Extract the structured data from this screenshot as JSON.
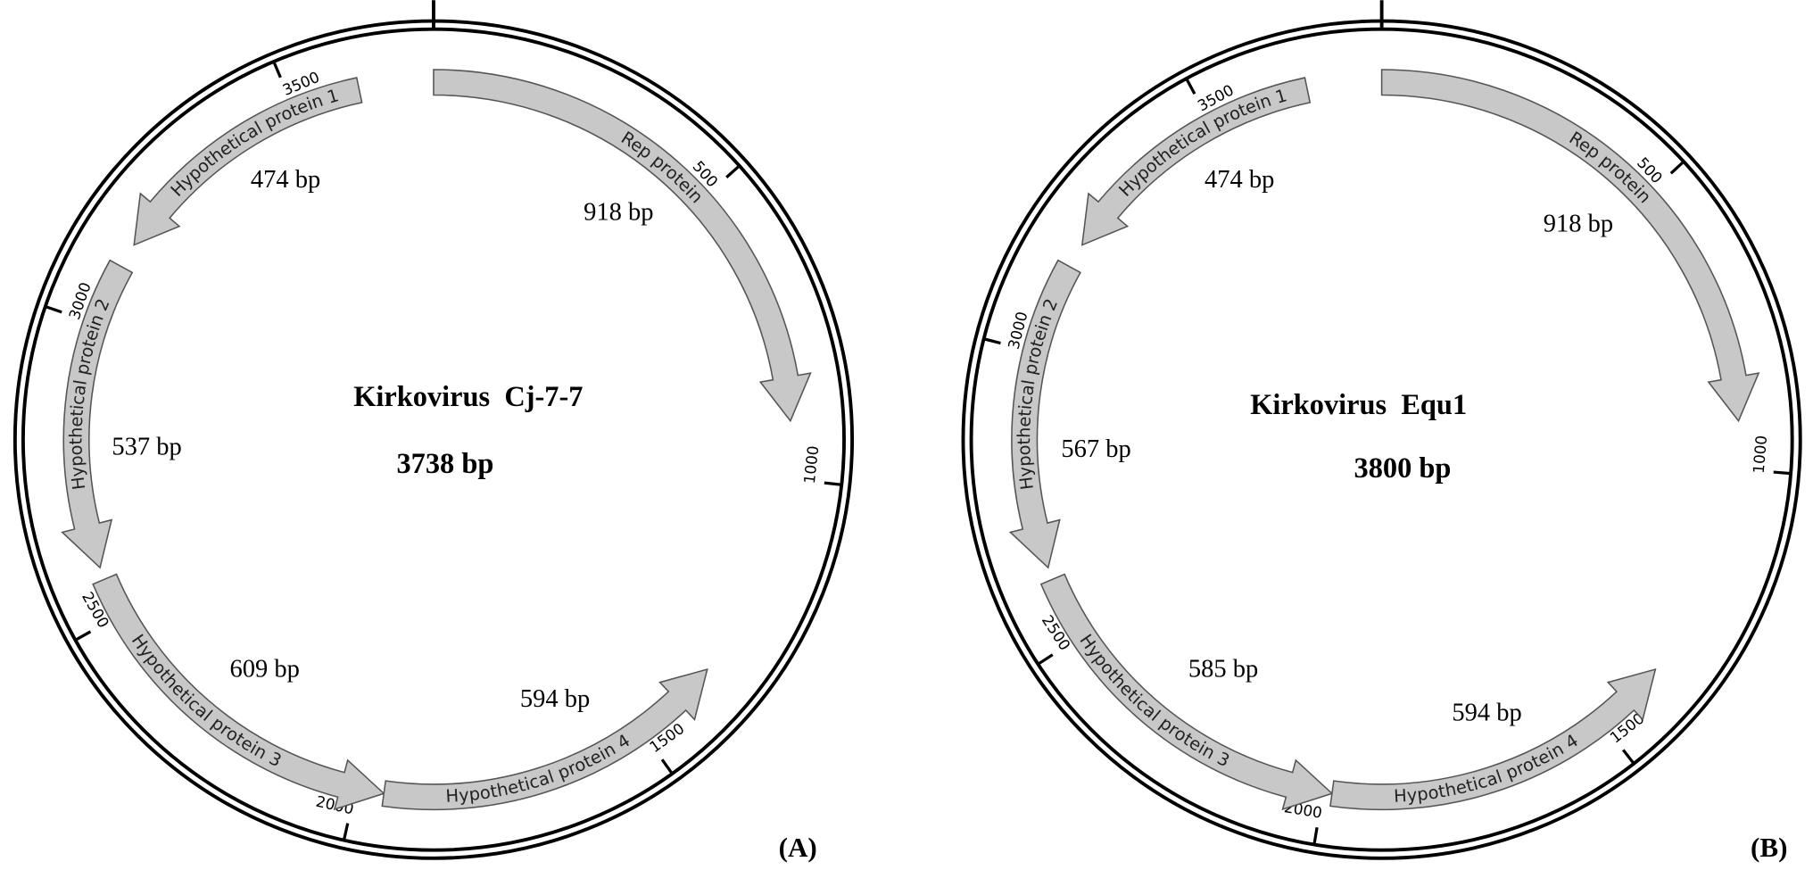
{
  "maps": [
    {
      "name": "Kirkovirus  Cj-7-7",
      "size": "3738 bp",
      "panel": "(A)",
      "ticks": [
        "500",
        "1000",
        "1500",
        "2000",
        "2500",
        "3000",
        "3500"
      ],
      "genes": [
        {
          "name": "Rep protein",
          "length": "918 bp"
        },
        {
          "name": "Hypothetical protein 1",
          "length": "474 bp"
        },
        {
          "name": "Hypothetical protein 2",
          "length": "537 bp"
        },
        {
          "name": "Hypothetical protein 3",
          "length": "609 bp"
        },
        {
          "name": "Hypothetical protein 4",
          "length": "594 bp"
        }
      ]
    },
    {
      "name": "Kirkovirus  Equ1",
      "size": "3800 bp",
      "panel": "(B)",
      "ticks": [
        "500",
        "1000",
        "1500",
        "2000",
        "2500",
        "3000",
        "3500"
      ],
      "genes": [
        {
          "name": "Rep protein",
          "length": "918 bp"
        },
        {
          "name": "Hypothetical protein 1",
          "length": "474 bp"
        },
        {
          "name": "Hypothetical protein 2",
          "length": "567 bp"
        },
        {
          "name": "Hypothetical protein 3",
          "length": "585 bp"
        },
        {
          "name": "Hypothetical protein 4",
          "length": "594 bp"
        }
      ]
    }
  ]
}
